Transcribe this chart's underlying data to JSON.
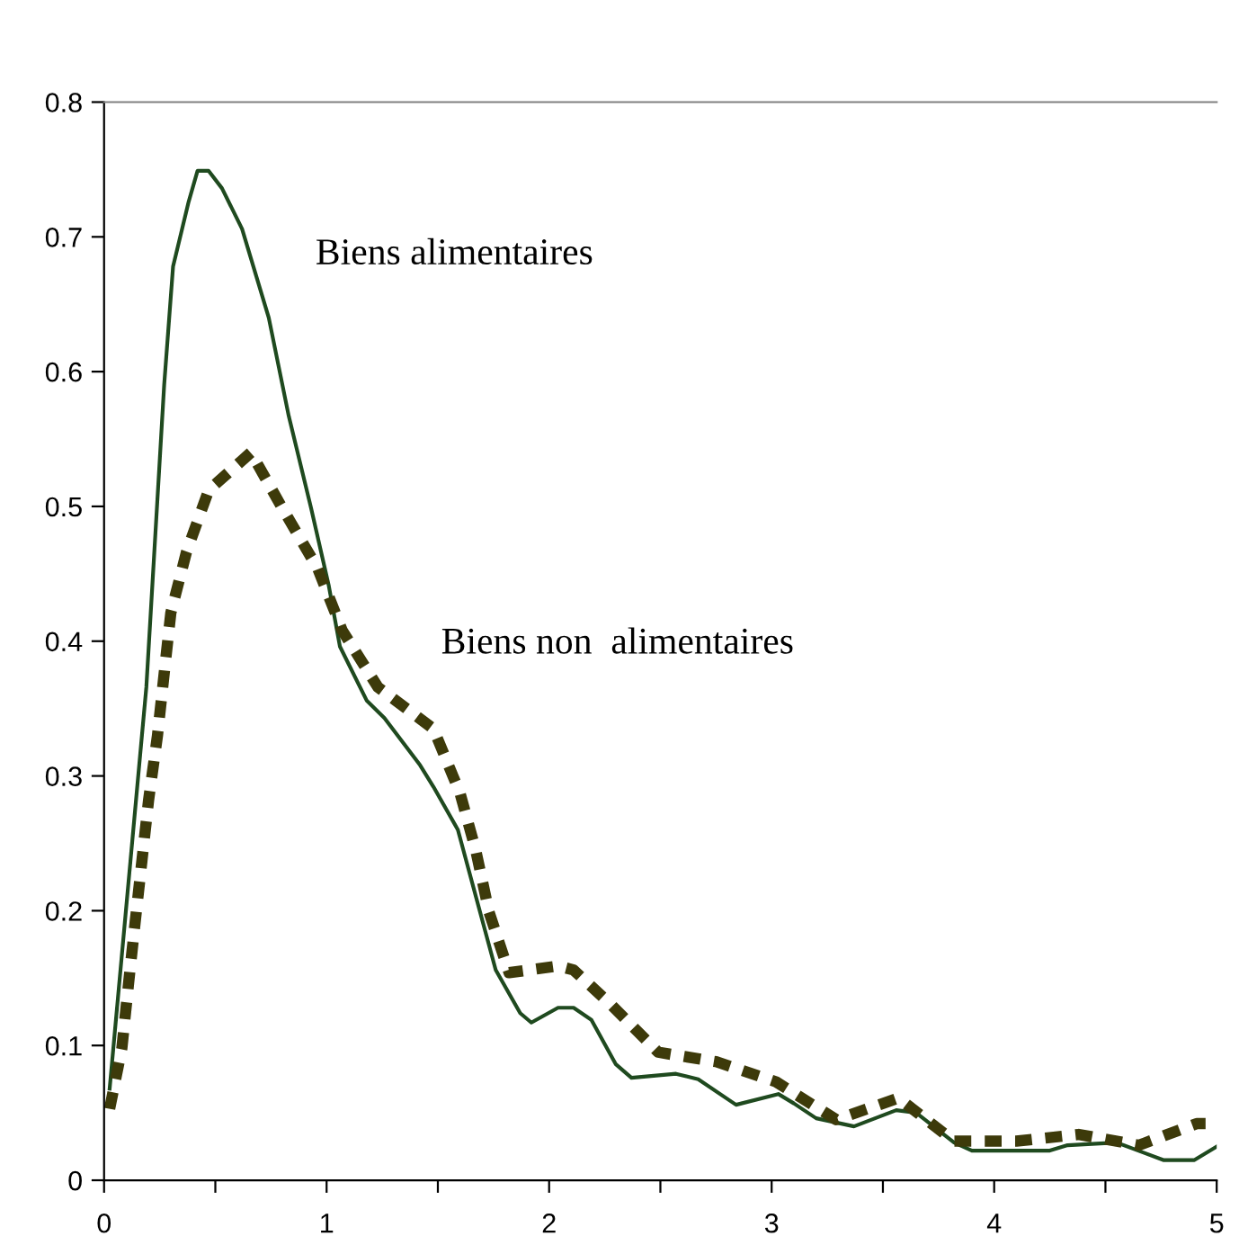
{
  "chart_data": {
    "type": "line",
    "series": [
      {
        "name": "Biens alimentaires",
        "color": "#1f4a1f",
        "line_style": "solid",
        "x": [
          0.025,
          0.19,
          0.27,
          0.31,
          0.38,
          0.42,
          0.47,
          0.53,
          0.62,
          0.74,
          0.83,
          0.93,
          1.01,
          1.06,
          1.18,
          1.26,
          1.42,
          1.48,
          1.59,
          1.76,
          1.87,
          1.92,
          2.04,
          2.11,
          2.19,
          2.3,
          2.37,
          2.57,
          2.67,
          2.84,
          3.03,
          3.1,
          3.2,
          3.37,
          3.56,
          3.65,
          3.82,
          3.9,
          4.25,
          4.33,
          4.55,
          4.76,
          4.9,
          5.0
        ],
        "values": [
          0.068,
          0.366,
          0.59,
          0.678,
          0.726,
          0.749,
          0.749,
          0.736,
          0.706,
          0.64,
          0.567,
          0.499,
          0.441,
          0.396,
          0.356,
          0.343,
          0.308,
          0.292,
          0.26,
          0.156,
          0.124,
          0.117,
          0.128,
          0.128,
          0.119,
          0.086,
          0.076,
          0.079,
          0.075,
          0.056,
          0.064,
          0.057,
          0.046,
          0.04,
          0.052,
          0.05,
          0.028,
          0.022,
          0.022,
          0.026,
          0.028,
          0.015,
          0.015,
          0.025
        ]
      },
      {
        "name": "Biens non  alimentaires",
        "color": "#3d3a0a",
        "line_style": "dashed",
        "x": [
          0.025,
          0.08,
          0.11,
          0.14,
          0.17,
          0.2,
          0.24,
          0.27,
          0.3,
          0.37,
          0.47,
          0.66,
          0.8,
          0.96,
          1.07,
          1.23,
          1.48,
          1.6,
          1.67,
          1.73,
          1.82,
          2.04,
          2.11,
          2.28,
          2.49,
          2.75,
          3.02,
          3.29,
          3.57,
          3.82,
          4.1,
          4.38,
          4.65,
          4.91,
          4.95
        ],
        "values": [
          0.053,
          0.098,
          0.146,
          0.192,
          0.237,
          0.282,
          0.33,
          0.376,
          0.421,
          0.466,
          0.512,
          0.54,
          0.499,
          0.454,
          0.408,
          0.366,
          0.335,
          0.287,
          0.245,
          0.199,
          0.154,
          0.159,
          0.156,
          0.13,
          0.095,
          0.088,
          0.073,
          0.045,
          0.061,
          0.029,
          0.029,
          0.034,
          0.026,
          0.042,
          0.042
        ]
      }
    ],
    "xlim": [
      0,
      5
    ],
    "ylim": [
      0,
      0.8
    ],
    "xticks": [
      0,
      {
        "value": 0.5,
        "label": null
      },
      1,
      {
        "value": 1.5,
        "label": null
      },
      2,
      {
        "value": 2.5,
        "label": null
      },
      3,
      {
        "value": 3.5,
        "label": null
      },
      4,
      {
        "value": 4.5,
        "label": null
      },
      5
    ],
    "yticks": [
      0,
      0.1,
      0.2,
      0.3,
      0.4,
      0.5,
      0.6,
      0.7,
      0.8
    ],
    "grid": false,
    "legend": false,
    "marker": "none"
  }
}
